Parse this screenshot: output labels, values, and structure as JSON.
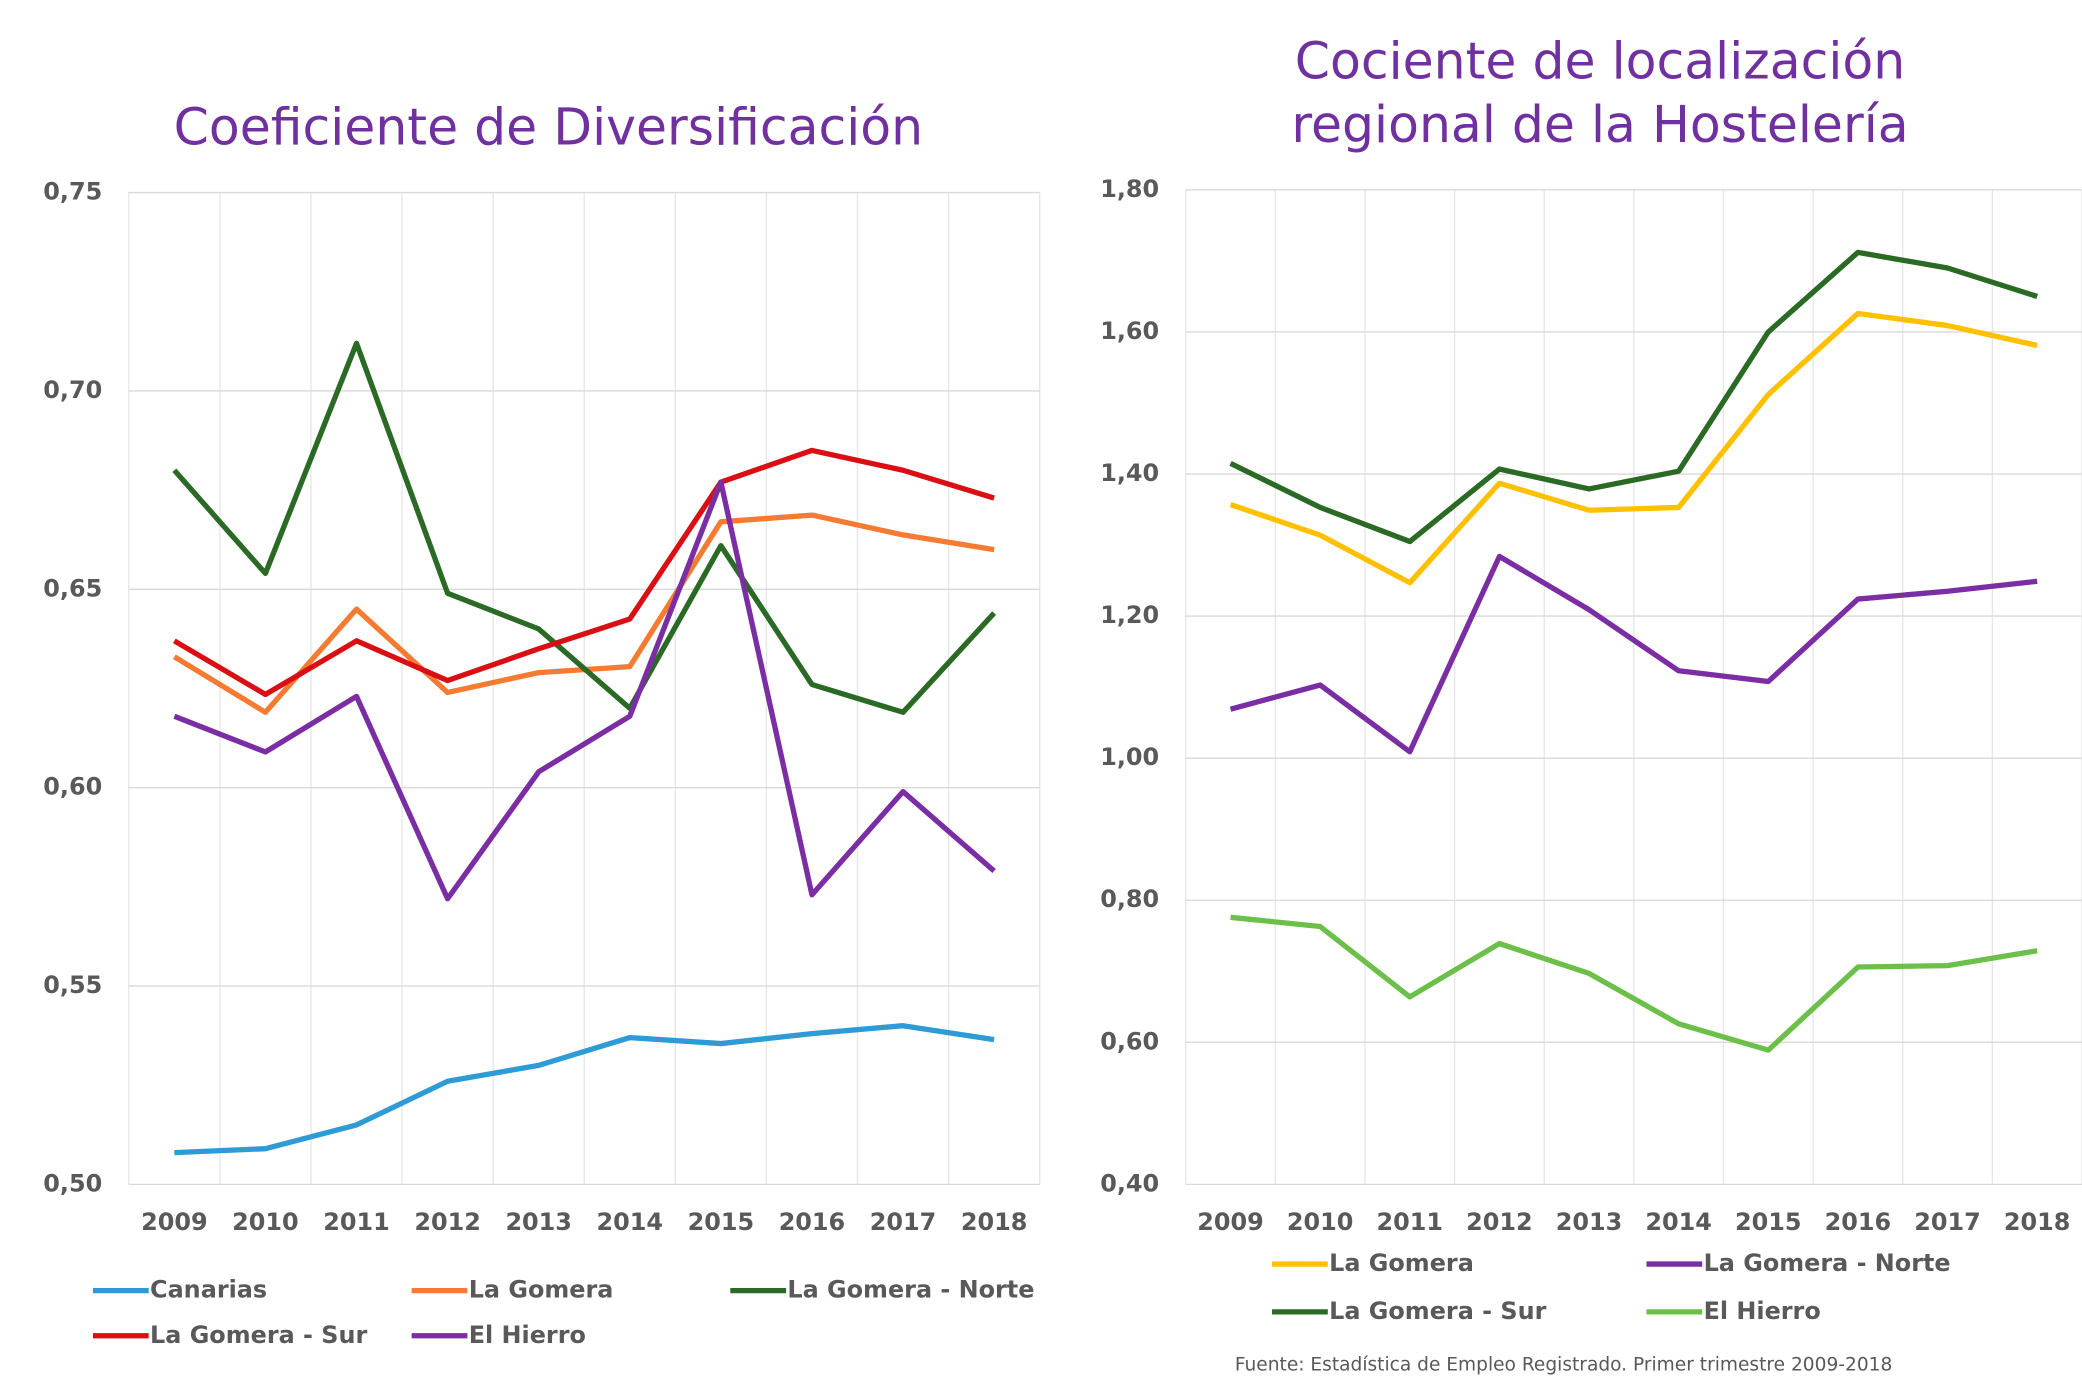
{
  "chart_data": [
    {
      "type": "line",
      "title": "Coeficiente de Diversificación",
      "categories": [
        "2009",
        "2010",
        "2011",
        "2012",
        "2013",
        "2014",
        "2015",
        "2016",
        "2017",
        "2018"
      ],
      "ylim": [
        0.5,
        0.75
      ],
      "yticks": [
        {
          "value": 0.5,
          "label": "0,50"
        },
        {
          "value": 0.55,
          "label": "0,55"
        },
        {
          "value": 0.6,
          "label": "0,60"
        },
        {
          "value": 0.65,
          "label": "0,65"
        },
        {
          "value": 0.7,
          "label": "0,70"
        },
        {
          "value": 0.75,
          "label": "0,75"
        }
      ],
      "grid": true,
      "series": [
        {
          "name": "Canarias",
          "color": "#2e9bd6",
          "values": [
            0.508,
            0.509,
            0.515,
            0.526,
            0.53,
            0.537,
            0.5355,
            0.538,
            0.54,
            0.5365
          ]
        },
        {
          "name": "La Gomera",
          "color": "#f47b31",
          "values": [
            0.633,
            0.619,
            0.645,
            0.624,
            0.629,
            0.6305,
            0.667,
            0.6687,
            0.6637,
            0.66
          ]
        },
        {
          "name": "La Gomera - Norte",
          "color": "#2a6a25",
          "values": [
            0.68,
            0.654,
            0.712,
            0.649,
            0.64,
            0.62,
            0.661,
            0.626,
            0.619,
            0.644
          ]
        },
        {
          "name": "La Gomera - Sur",
          "color": "#d90f14",
          "values": [
            0.637,
            0.6235,
            0.637,
            0.627,
            0.635,
            0.6425,
            0.677,
            0.685,
            0.68,
            0.673
          ]
        },
        {
          "name": "El Hierro",
          "color": "#7b2ea3",
          "values": [
            0.618,
            0.609,
            0.623,
            0.572,
            0.604,
            0.618,
            0.677,
            0.573,
            0.599,
            0.579
          ]
        }
      ]
    },
    {
      "type": "line",
      "title": "Cociente de localización regional de la Hostelería",
      "categories": [
        "2009",
        "2010",
        "2011",
        "2012",
        "2013",
        "2014",
        "2015",
        "2016",
        "2017",
        "2018"
      ],
      "ylim": [
        0.4,
        1.8
      ],
      "yticks": [
        {
          "value": 0.4,
          "label": "0,40"
        },
        {
          "value": 0.6,
          "label": "0,60"
        },
        {
          "value": 0.8,
          "label": "0,80"
        },
        {
          "value": 1.0,
          "label": "1,00"
        },
        {
          "value": 1.2,
          "label": "1,20"
        },
        {
          "value": 1.4,
          "label": "1,40"
        },
        {
          "value": 1.6,
          "label": "1,60"
        },
        {
          "value": 1.8,
          "label": "1,80"
        }
      ],
      "grid": true,
      "series": [
        {
          "name": "La Gomera",
          "color": "#ffc000",
          "values": [
            1.357,
            1.314,
            1.247,
            1.387,
            1.349,
            1.353,
            1.512,
            1.626,
            1.609,
            1.581
          ]
        },
        {
          "name": "La Gomera - Norte",
          "color": "#7b2ea3",
          "values": [
            1.069,
            1.103,
            1.009,
            1.284,
            1.209,
            1.123,
            1.108,
            1.224,
            1.235,
            1.249
          ]
        },
        {
          "name": "La Gomera - Sur",
          "color": "#2a6a25",
          "values": [
            1.415,
            1.353,
            1.305,
            1.407,
            1.379,
            1.404,
            1.6,
            1.712,
            1.69,
            1.65
          ]
        },
        {
          "name": "El Hierro",
          "color": "#6cc04a",
          "values": [
            0.776,
            0.763,
            0.664,
            0.739,
            0.697,
            0.626,
            0.589,
            0.706,
            0.708,
            0.729
          ]
        }
      ],
      "source": "Fuente: Estadística de Empleo Registrado. Primer trimestre 2009-2018"
    }
  ]
}
